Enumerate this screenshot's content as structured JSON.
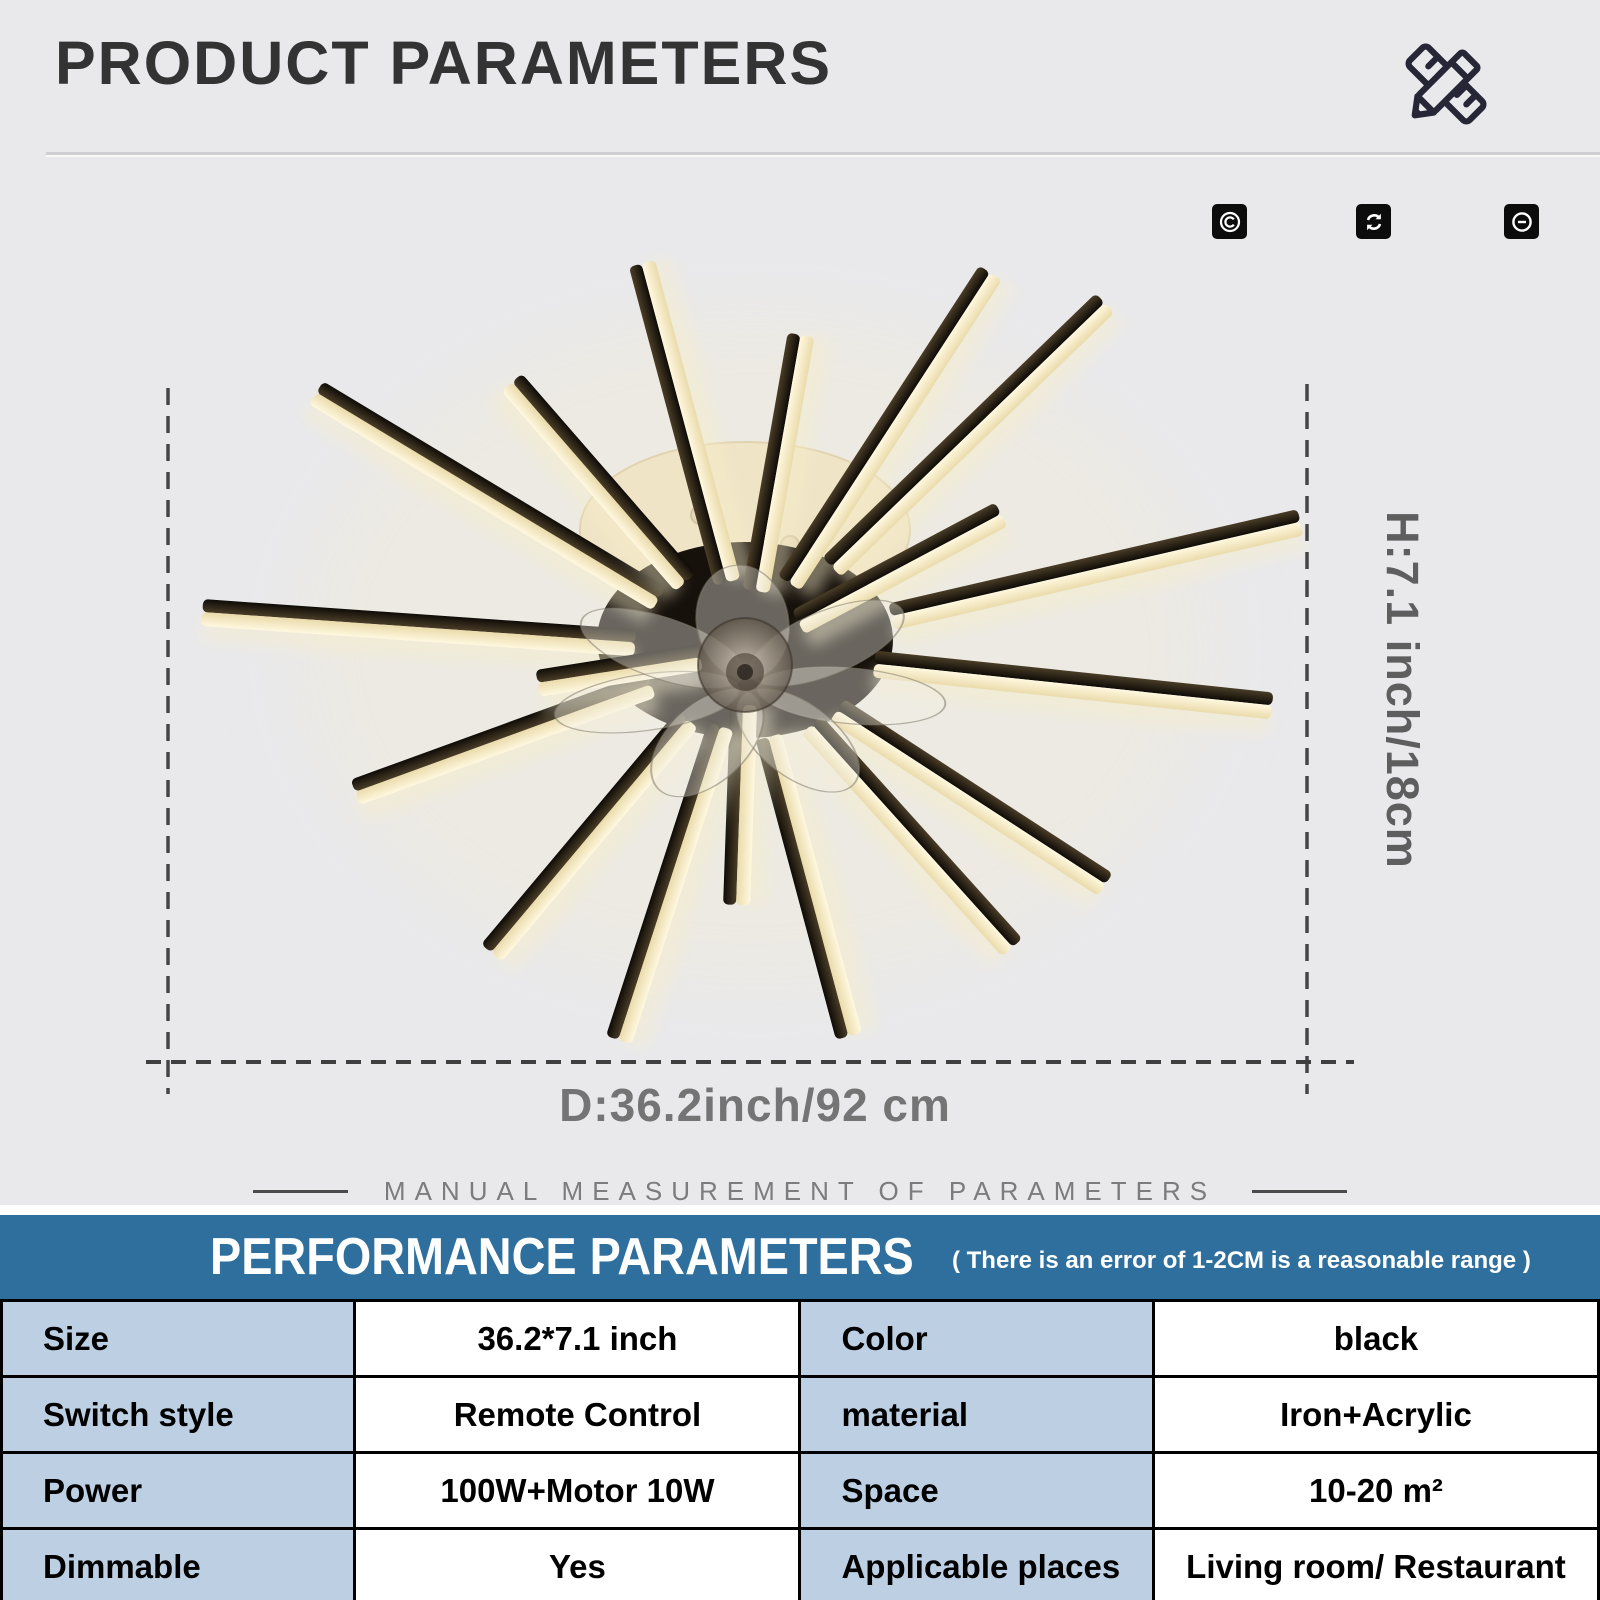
{
  "page": {
    "title": "PRODUCT PARAMETERS"
  },
  "icons": {
    "header_icon": "pencil-ruler",
    "badge_icons": [
      "copyright",
      "sync-arrows",
      "circle-minus"
    ]
  },
  "dimensions": {
    "height_label": "H:7.1 inch/18cm",
    "diameter_label": "D:36.2inch/92 cm",
    "measurement_note": "MANUAL MEASUREMENT OF PARAMETERS"
  },
  "performance": {
    "title": "PERFORMANCE PARAMETERS",
    "tolerance_note": "( There is an error of 1-2CM is a reasonable range )",
    "rows": [
      {
        "label1": "Size",
        "value1": "36.2*7.1 inch",
        "label2": "Color",
        "value2": "black"
      },
      {
        "label1": "Switch style",
        "value1": "Remote Control",
        "label2": "material",
        "value2": "Iron+Acrylic"
      },
      {
        "label1": "Power",
        "value1": "100W+Motor 10W",
        "label2": "Space",
        "value2": "10-20 m²"
      },
      {
        "label1": "Dimmable",
        "value1": "Yes",
        "label2": "Applicable places",
        "value2": "Living room/ Restaurant"
      }
    ]
  },
  "colors": {
    "background": "#e9e9ec",
    "accent_blue": "#2e6f9d",
    "label_cell_blue": "#bdd0e3",
    "lamp_cream": "#f2e5bd",
    "lamp_black": "#1b1510"
  }
}
